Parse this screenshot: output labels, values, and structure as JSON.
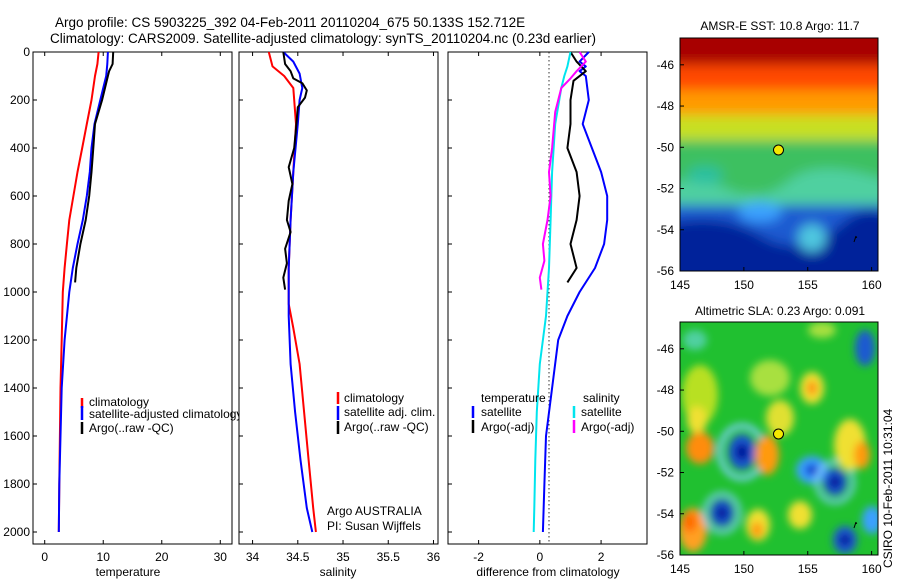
{
  "header": {
    "line1": "Argo profile: CS 5903225_392 04-Feb-2011 20110204_675 50.133S 152.712E",
    "line2": "Climatology: CARS2009. Satellite-adjusted climatology: synTS_20110204.nc (0.23d earlier)"
  },
  "credit": {
    "line1": "Argo AUSTRALIA",
    "line2": "PI: Susan Wijffels"
  },
  "timestamp": "CSIRO 10-Feb-2011 10:31:04",
  "colors": {
    "climatology": "#ff0000",
    "satellite": "#0000ff",
    "argo": "#000000",
    "salinity_satellite_diff": "#00e5ee",
    "salinity_argo_diff": "#ff00ff"
  },
  "chart_data": [
    {
      "type": "line",
      "panel": "temperature",
      "xlabel": "temperature",
      "ylabel": "",
      "xlim": [
        -2,
        32
      ],
      "ylim": [
        2050,
        0
      ],
      "xticks": [
        0,
        10,
        20,
        30
      ],
      "yticks": [
        0,
        200,
        400,
        600,
        800,
        1000,
        1200,
        1400,
        1600,
        1800,
        2000
      ],
      "legend": {
        "placement": "lower-right",
        "entries": [
          "climatology",
          "satellite-adjusted climatology",
          "Argo(..raw -QC)"
        ]
      },
      "series": [
        {
          "name": "climatology",
          "color": "#ff0000",
          "points": [
            [
              9.2,
              0
            ],
            [
              9.0,
              50
            ],
            [
              8.6,
              100
            ],
            [
              8.0,
              200
            ],
            [
              7.2,
              300
            ],
            [
              6.4,
              400
            ],
            [
              5.6,
              500
            ],
            [
              4.9,
              600
            ],
            [
              4.2,
              700
            ],
            [
              3.8,
              800
            ],
            [
              3.4,
              900
            ],
            [
              3.1,
              1000
            ],
            [
              2.9,
              1200
            ],
            [
              2.7,
              1400
            ],
            [
              2.6,
              1600
            ],
            [
              2.5,
              1800
            ],
            [
              2.4,
              2000
            ]
          ]
        },
        {
          "name": "satellite-adjusted climatology",
          "color": "#0000ff",
          "points": [
            [
              10.8,
              0
            ],
            [
              10.7,
              50
            ],
            [
              10.5,
              100
            ],
            [
              9.5,
              200
            ],
            [
              8.5,
              300
            ],
            [
              8.0,
              400
            ],
            [
              7.7,
              500
            ],
            [
              7.2,
              600
            ],
            [
              6.5,
              700
            ],
            [
              5.6,
              800
            ],
            [
              4.8,
              900
            ],
            [
              4.2,
              1000
            ],
            [
              3.4,
              1200
            ],
            [
              2.9,
              1400
            ],
            [
              2.7,
              1600
            ],
            [
              2.5,
              1800
            ],
            [
              2.4,
              2000
            ]
          ]
        },
        {
          "name": "Argo(..raw -QC)",
          "color": "#000000",
          "points": [
            [
              11.7,
              0
            ],
            [
              11.6,
              50
            ],
            [
              11.0,
              80
            ],
            [
              10.8,
              100
            ],
            [
              9.8,
              200
            ],
            [
              8.6,
              300
            ],
            [
              8.3,
              400
            ],
            [
              8.0,
              500
            ],
            [
              7.6,
              600
            ],
            [
              7.0,
              700
            ],
            [
              6.1,
              800
            ],
            [
              5.4,
              900
            ],
            [
              5.2,
              960
            ]
          ]
        }
      ]
    },
    {
      "type": "line",
      "panel": "salinity",
      "xlabel": "salinity",
      "xlim": [
        33.85,
        36.05
      ],
      "ylim": [
        2050,
        0
      ],
      "xticks": [
        34,
        34.5,
        35,
        35.5,
        36
      ],
      "xticklabels": [
        "34",
        "34.5",
        "35",
        "35.5",
        "36"
      ],
      "legend": {
        "placement": "lower-right",
        "entries": [
          "climatology",
          "satellite adj. clim.",
          "Argo(..raw -QC)"
        ]
      },
      "series": [
        {
          "name": "climatology",
          "color": "#ff0000",
          "points": [
            [
              34.18,
              0
            ],
            [
              34.22,
              60
            ],
            [
              34.35,
              100
            ],
            [
              34.45,
              150
            ],
            [
              34.48,
              300
            ],
            [
              34.45,
              500
            ],
            [
              34.42,
              700
            ],
            [
              34.4,
              900
            ],
            [
              34.4,
              1050
            ],
            [
              34.45,
              1150
            ],
            [
              34.52,
              1300
            ],
            [
              34.57,
              1500
            ],
            [
              34.62,
              1700
            ],
            [
              34.67,
              1900
            ],
            [
              34.7,
              2000
            ]
          ]
        },
        {
          "name": "satellite adj. clim.",
          "color": "#0000ff",
          "points": [
            [
              34.34,
              0
            ],
            [
              34.45,
              40
            ],
            [
              34.52,
              90
            ],
            [
              34.55,
              150
            ],
            [
              34.52,
              200
            ],
            [
              34.5,
              300
            ],
            [
              34.45,
              500
            ],
            [
              34.42,
              700
            ],
            [
              34.4,
              900
            ],
            [
              34.4,
              1100
            ],
            [
              34.42,
              1300
            ],
            [
              34.47,
              1500
            ],
            [
              34.53,
              1700
            ],
            [
              34.6,
              1900
            ],
            [
              34.66,
              2000
            ]
          ]
        },
        {
          "name": "Argo(..raw -QC)",
          "color": "#000000",
          "points": [
            [
              34.34,
              0
            ],
            [
              34.36,
              50
            ],
            [
              34.42,
              80
            ],
            [
              34.45,
              110
            ],
            [
              34.55,
              130
            ],
            [
              34.6,
              160
            ],
            [
              34.58,
              190
            ],
            [
              34.5,
              230
            ],
            [
              34.48,
              320
            ],
            [
              34.46,
              400
            ],
            [
              34.4,
              480
            ],
            [
              34.44,
              550
            ],
            [
              34.4,
              620
            ],
            [
              34.38,
              700
            ],
            [
              34.42,
              750
            ],
            [
              34.36,
              820
            ],
            [
              34.38,
              880
            ],
            [
              34.34,
              940
            ],
            [
              34.36,
              990
            ]
          ]
        }
      ]
    },
    {
      "type": "line",
      "panel": "difference",
      "xlabel": "difference from climatology",
      "xlim": [
        -3,
        3.5
      ],
      "ylim": [
        2050,
        0
      ],
      "xticks": [
        -2,
        0,
        2
      ],
      "legend": {
        "placement": "lower-center",
        "groups": [
          {
            "title": "temperature",
            "entries": [
              "satellite",
              "Argo(-adj)"
            ]
          },
          {
            "title": "salinity",
            "entries": [
              "satellite",
              "Argo(-adj)"
            ]
          }
        ]
      },
      "series": [
        {
          "name": "temperature satellite",
          "color": "#0000ff",
          "points": [
            [
              1.6,
              0
            ],
            [
              1.3,
              40
            ],
            [
              1.5,
              60
            ],
            [
              1.3,
              80
            ],
            [
              1.5,
              100
            ],
            [
              1.6,
              200
            ],
            [
              1.4,
              300
            ],
            [
              1.7,
              400
            ],
            [
              2.0,
              500
            ],
            [
              2.2,
              600
            ],
            [
              2.2,
              700
            ],
            [
              2.1,
              800
            ],
            [
              1.8,
              900
            ],
            [
              1.3,
              1000
            ],
            [
              0.9,
              1100
            ],
            [
              0.6,
              1200
            ],
            [
              0.4,
              1400
            ],
            [
              0.2,
              1600
            ],
            [
              0.15,
              1800
            ],
            [
              0.1,
              2000
            ]
          ]
        },
        {
          "name": "temperature Argo(-adj)",
          "color": "#000000",
          "points": [
            [
              1.0,
              0
            ],
            [
              1.2,
              40
            ],
            [
              1.5,
              80
            ],
            [
              1.1,
              120
            ],
            [
              1.0,
              200
            ],
            [
              1.0,
              300
            ],
            [
              0.9,
              400
            ],
            [
              1.2,
              500
            ],
            [
              1.3,
              600
            ],
            [
              1.2,
              700
            ],
            [
              1.0,
              800
            ],
            [
              1.2,
              900
            ],
            [
              0.9,
              960
            ]
          ]
        },
        {
          "name": "salinity satellite",
          "color": "#00e5ee",
          "points": [
            [
              1.0,
              0
            ],
            [
              0.9,
              60
            ],
            [
              0.8,
              100
            ],
            [
              0.7,
              150
            ],
            [
              0.5,
              300
            ],
            [
              0.4,
              500
            ],
            [
              0.35,
              700
            ],
            [
              0.3,
              900
            ],
            [
              0.2,
              1100
            ],
            [
              0.0,
              1300
            ],
            [
              -0.1,
              1500
            ],
            [
              -0.15,
              1700
            ],
            [
              -0.18,
              1900
            ],
            [
              -0.2,
              2000
            ]
          ]
        },
        {
          "name": "salinity Argo(-adj)",
          "color": "#ff00ff",
          "points": [
            [
              1.3,
              0
            ],
            [
              1.5,
              40
            ],
            [
              1.2,
              80
            ],
            [
              1.0,
              110
            ],
            [
              0.7,
              150
            ],
            [
              0.5,
              250
            ],
            [
              0.4,
              400
            ],
            [
              0.3,
              500
            ],
            [
              0.35,
              600
            ],
            [
              0.25,
              700
            ],
            [
              0.1,
              800
            ],
            [
              0.15,
              870
            ],
            [
              0.0,
              940
            ],
            [
              0.05,
              990
            ]
          ]
        }
      ]
    },
    {
      "type": "heatmap",
      "panel": "sst-map",
      "title": "AMSR-E SST: 10.8 Argo: 11.7",
      "xlim": [
        145,
        160.5
      ],
      "ylim": [
        -56,
        -44.7
      ],
      "xticks": [
        145,
        150,
        155,
        160
      ],
      "yticks": [
        -46,
        -48,
        -50,
        -52,
        -54,
        -56
      ],
      "marker": {
        "lon": 152.712,
        "lat": -50.133
      }
    },
    {
      "type": "heatmap",
      "panel": "sla-map",
      "title": "Altimetric SLA: 0.23 Argo: 0.091",
      "xlim": [
        145,
        160.5
      ],
      "ylim": [
        -56,
        -44.7
      ],
      "xticks": [
        145,
        150,
        155,
        160
      ],
      "yticks": [
        -46,
        -48,
        -50,
        -52,
        -54,
        -56
      ],
      "marker": {
        "lon": 152.712,
        "lat": -50.133
      }
    }
  ]
}
